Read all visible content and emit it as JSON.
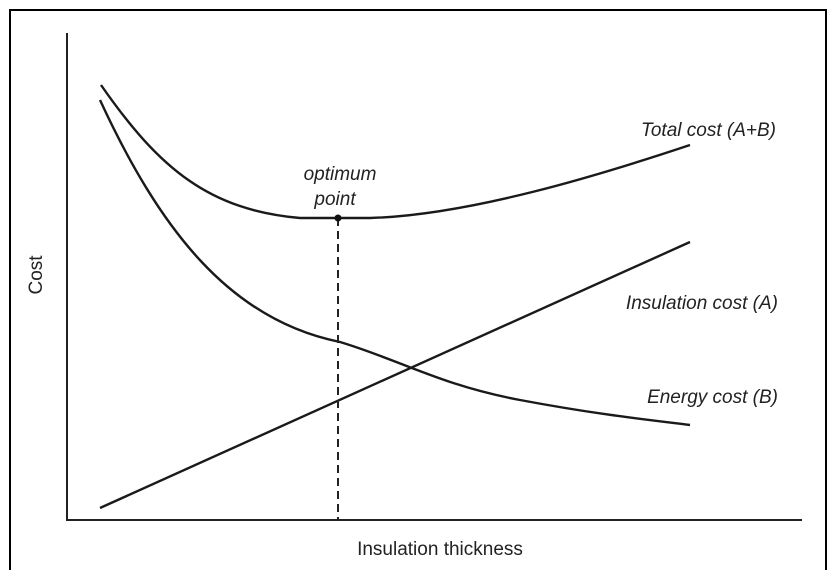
{
  "axes": {
    "y_label": "Cost",
    "x_label": "Insulation thickness"
  },
  "curves": {
    "total": "Total cost (A+B)",
    "insulation": "Insulation cost (A)",
    "energy": "Energy cost (B)"
  },
  "optimum": {
    "line1": "optimum",
    "line2": "point"
  }
}
